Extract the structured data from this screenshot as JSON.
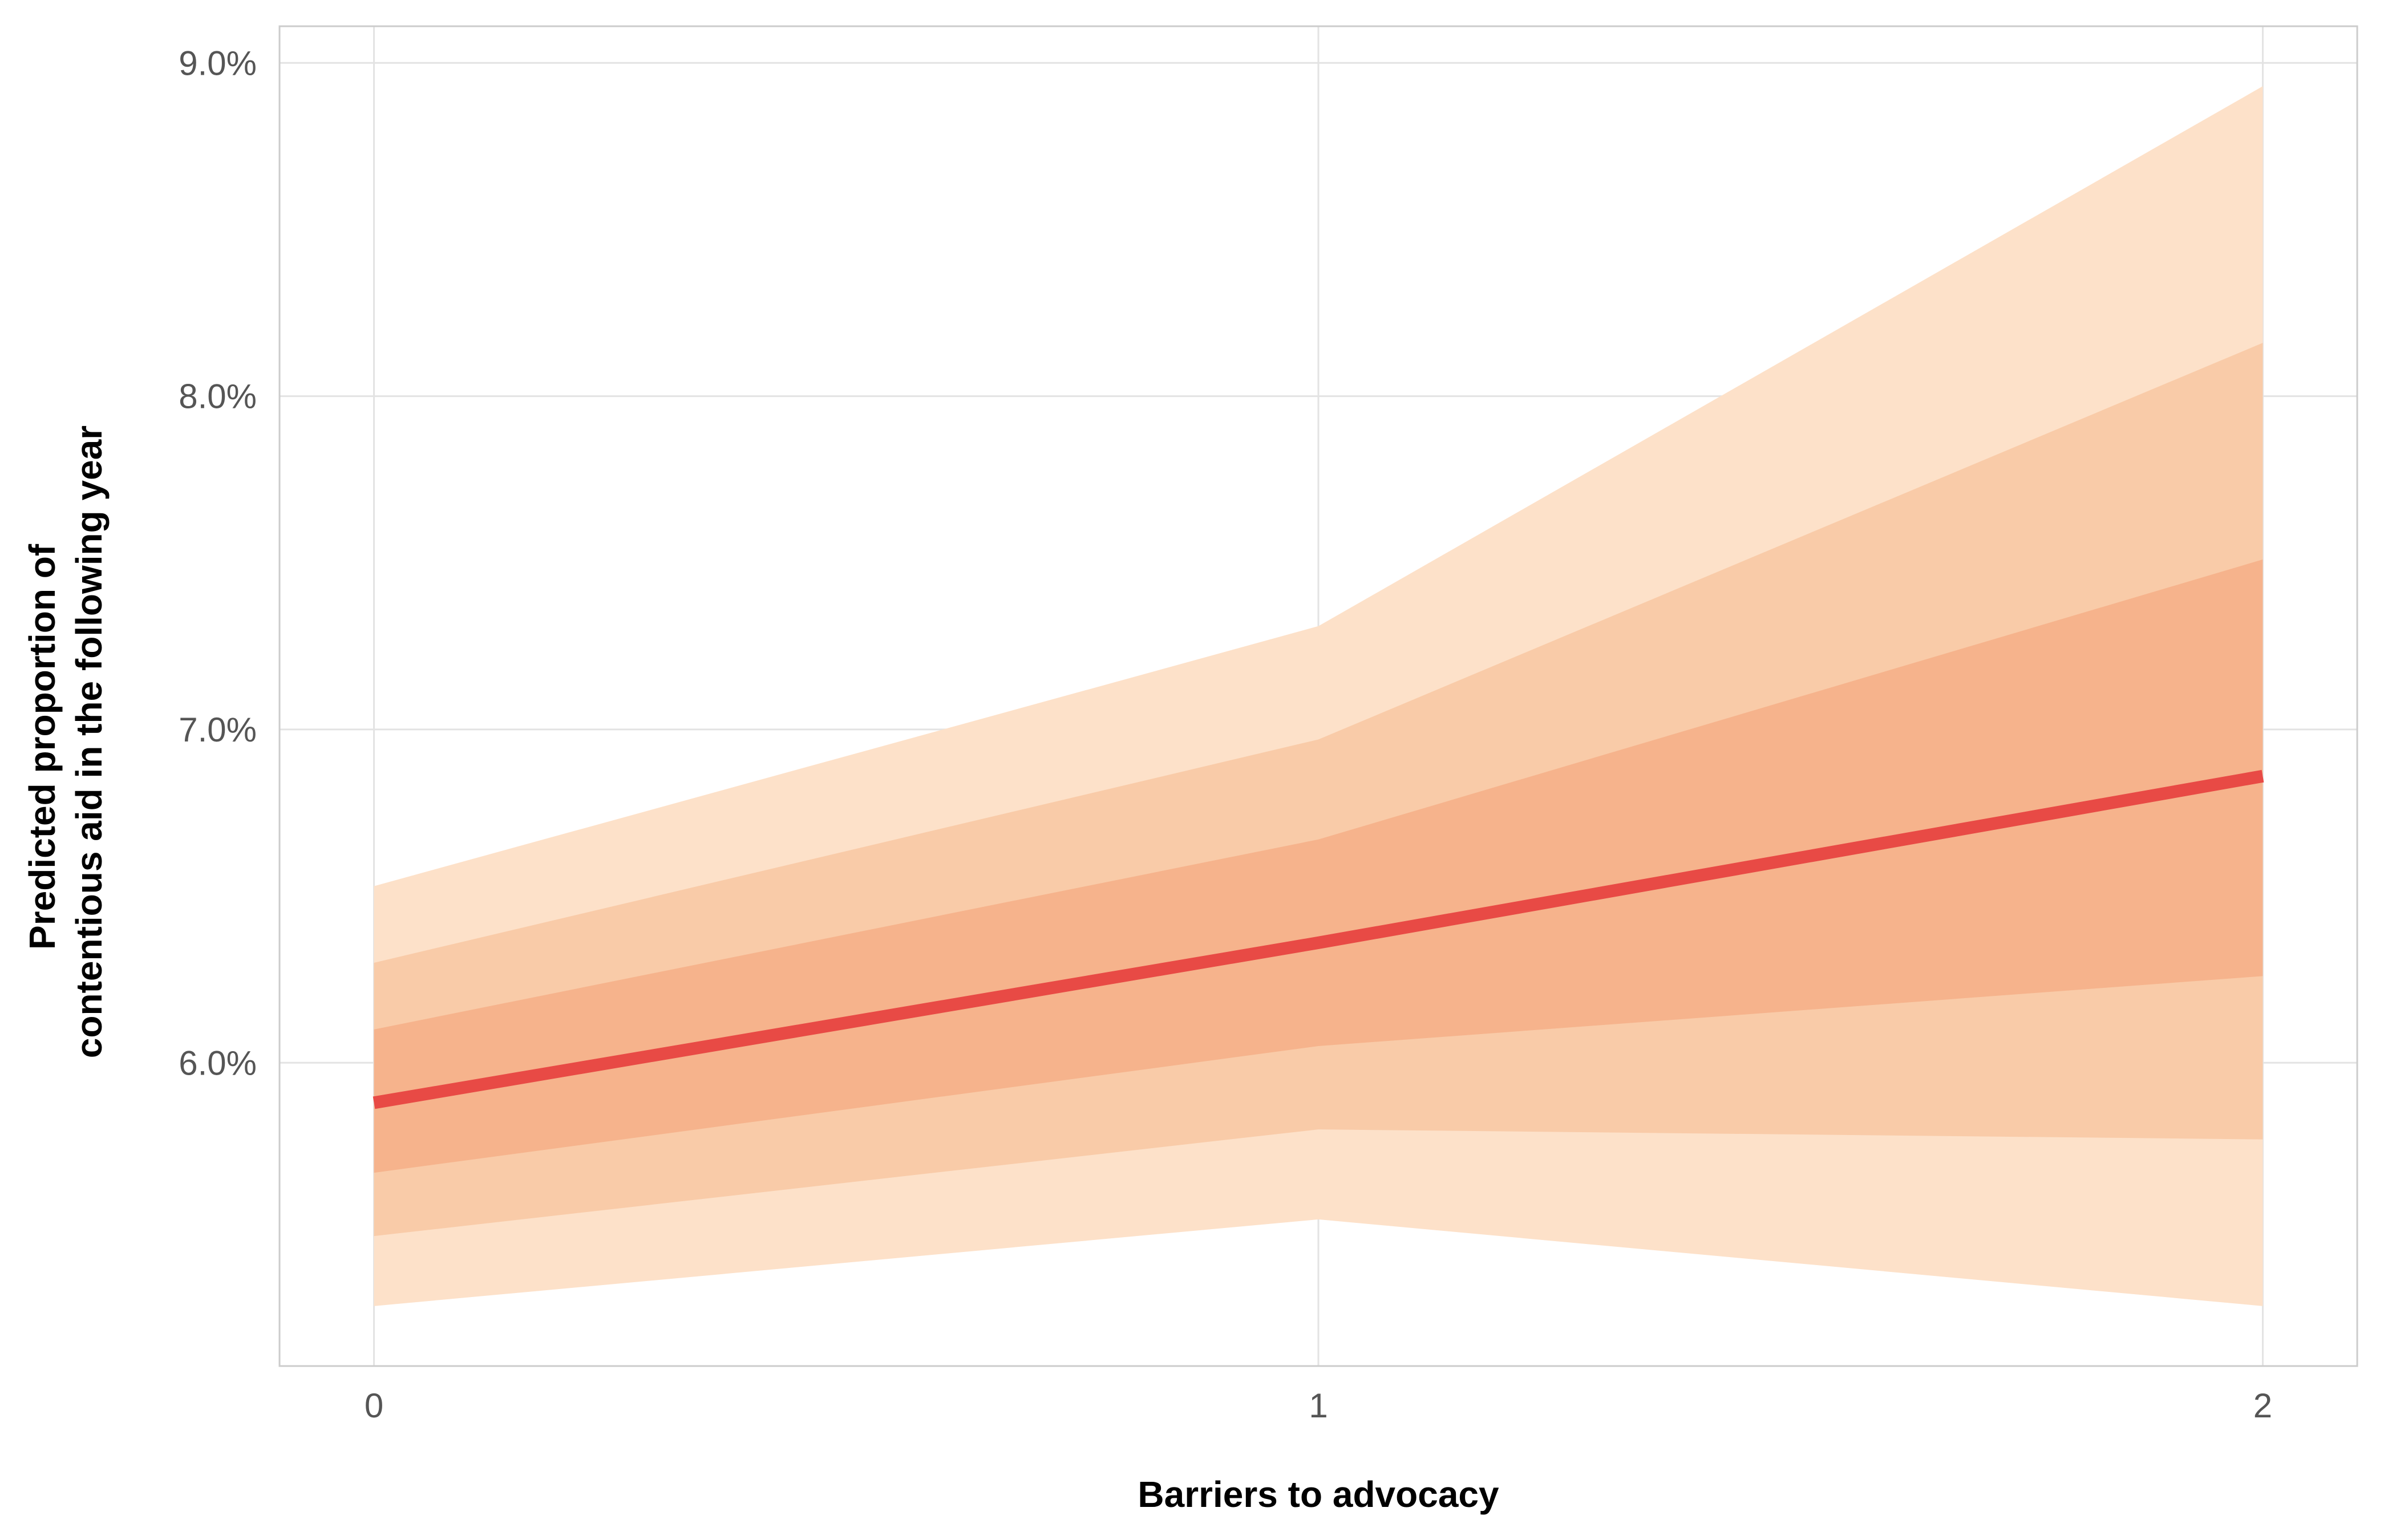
{
  "chart_data": {
    "type": "line",
    "xlabel": "Barriers to advocacy",
    "ylabel_lines": [
      "Predicted proportion of",
      "contentious aid in the following year"
    ],
    "x": [
      0,
      1,
      2
    ],
    "xticks": [
      0,
      1,
      2
    ],
    "xlim": [
      -0.1,
      2.1
    ],
    "ylim": [
      0.0509,
      0.0911
    ],
    "yticks": [
      0.06,
      0.07,
      0.08,
      0.09
    ],
    "ytick_labels": [
      "6.0%",
      "7.0%",
      "8.0%",
      "9.0%"
    ],
    "grid": true,
    "series": [
      {
        "values": [
          0.0588,
          0.0636,
          0.0686
        ]
      }
    ],
    "intervals": [
      {
        "lower": [
          0.0527,
          0.0553,
          0.0527
        ],
        "upper": [
          0.0653,
          0.0731,
          0.0893
        ]
      },
      {
        "lower": [
          0.0548,
          0.058,
          0.0577
        ],
        "upper": [
          0.063,
          0.0697,
          0.0816
        ]
      },
      {
        "lower": [
          0.0567,
          0.0605,
          0.0626
        ],
        "upper": [
          0.061,
          0.0667,
          0.0751
        ]
      }
    ],
    "colors": {
      "line": "#e84a45",
      "band_outer": "#fde1c9",
      "band_middle": "#f9cba8",
      "band_inner": "#f6b38c",
      "grid": "#e3e3e3",
      "frame": "#cccccc"
    }
  }
}
